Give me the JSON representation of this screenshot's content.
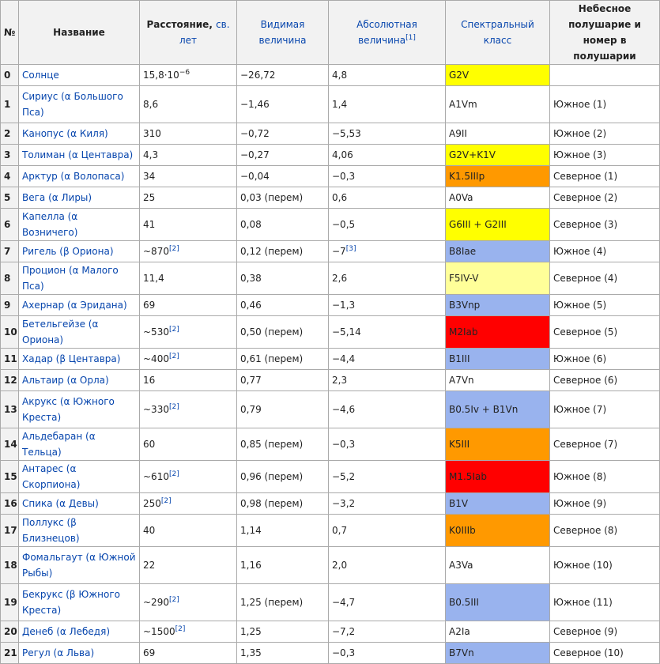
{
  "headers": {
    "num": "№",
    "name": "Название",
    "dist_prefix": "Расстояние,",
    "dist_link": "св. лет",
    "apparent": "Видимая величина",
    "absolute": "Абсолютная величина",
    "absolute_ref": "[1]",
    "spectral": "Спектральный класс",
    "hemisphere": "Небесное полушарие и номер в полушарии"
  },
  "rows": [
    {
      "num": "0",
      "name": "Солнце",
      "dist": "15,8·10",
      "dist_exp": "−6",
      "dist_ref": "",
      "app": "−26,72",
      "abs": "4,8",
      "abs_ref": "",
      "spec": "G2V",
      "color": "#ffff00",
      "hemi": ""
    },
    {
      "num": "1",
      "name": "Сириус (α Большого Пса)",
      "dist": "8,6",
      "dist_exp": "",
      "dist_ref": "",
      "app": "−1,46",
      "abs": "1,4",
      "abs_ref": "",
      "spec": "A1Vm",
      "color": "#ffffff",
      "hemi": "Южное (1)"
    },
    {
      "num": "2",
      "name": "Канопус (α Киля)",
      "dist": "310",
      "dist_exp": "",
      "dist_ref": "",
      "app": "−0,72",
      "abs": "−5,53",
      "abs_ref": "",
      "spec": "A9II",
      "color": "#ffffff",
      "hemi": "Южное (2)"
    },
    {
      "num": "3",
      "name": "Толиман (α Центавра)",
      "dist": "4,3",
      "dist_exp": "",
      "dist_ref": "",
      "app": "−0,27",
      "abs": "4,06",
      "abs_ref": "",
      "spec": "G2V+K1V",
      "color": "#ffff00",
      "hemi": "Южное (3)"
    },
    {
      "num": "4",
      "name": "Арктур (α Волопаса)",
      "dist": "34",
      "dist_exp": "",
      "dist_ref": "",
      "app": "−0,04",
      "abs": "−0,3",
      "abs_ref": "",
      "spec": "K1.5IIIp",
      "color": "#ff9900",
      "hemi": "Северное (1)"
    },
    {
      "num": "5",
      "name": "Вега (α Лиры)",
      "dist": "25",
      "dist_exp": "",
      "dist_ref": "",
      "app": "0,03 (перем)",
      "abs": "0,6",
      "abs_ref": "",
      "spec": "A0Va",
      "color": "#ffffff",
      "hemi": "Северное (2)"
    },
    {
      "num": "6",
      "name": "Капелла (α Возничего)",
      "dist": "41",
      "dist_exp": "",
      "dist_ref": "",
      "app": "0,08",
      "abs": "−0,5",
      "abs_ref": "",
      "spec": "G6III + G2III",
      "color": "#ffff00",
      "hemi": "Северное (3)"
    },
    {
      "num": "7",
      "name": "Ригель (β Ориона)",
      "dist": "~870",
      "dist_exp": "",
      "dist_ref": "[2]",
      "app": "0,12 (перем)",
      "abs": "−7",
      "abs_ref": "[3]",
      "spec": "B8Iae",
      "color": "#99b3ee",
      "hemi": "Южное (4)"
    },
    {
      "num": "8",
      "name": "Процион (α Малого Пса)",
      "dist": "11,4",
      "dist_exp": "",
      "dist_ref": "",
      "app": "0,38",
      "abs": "2,6",
      "abs_ref": "",
      "spec": "F5IV-V",
      "color": "#ffff99",
      "hemi": "Северное (4)"
    },
    {
      "num": "9",
      "name": "Ахернар (α Эридана)",
      "dist": "69",
      "dist_exp": "",
      "dist_ref": "",
      "app": "0,46",
      "abs": "−1,3",
      "abs_ref": "",
      "spec": "B3Vnp",
      "color": "#99b3ee",
      "hemi": "Южное (5)"
    },
    {
      "num": "10",
      "name": "Бетельгейзе (α Ориона)",
      "dist": "~530",
      "dist_exp": "",
      "dist_ref": "[2]",
      "app": "0,50 (перем)",
      "abs": "−5,14",
      "abs_ref": "",
      "spec": "M2Iab",
      "color": "#ff0000",
      "hemi": "Северное (5)"
    },
    {
      "num": "11",
      "name": "Хадар (β Центавра)",
      "dist": "~400",
      "dist_exp": "",
      "dist_ref": "[2]",
      "app": "0,61 (перем)",
      "abs": "−4,4",
      "abs_ref": "",
      "spec": "B1III",
      "color": "#99b3ee",
      "hemi": "Южное (6)"
    },
    {
      "num": "12",
      "name": "Альтаир (α Орла)",
      "dist": "16",
      "dist_exp": "",
      "dist_ref": "",
      "app": "0,77",
      "abs": "2,3",
      "abs_ref": "",
      "spec": "A7Vn",
      "color": "#ffffff",
      "hemi": "Северное (6)"
    },
    {
      "num": "13",
      "name": "Акрукс (α Южного Креста)",
      "dist": "~330",
      "dist_exp": "",
      "dist_ref": "[2]",
      "app": "0,79",
      "abs": "−4,6",
      "abs_ref": "",
      "spec": "B0.5Iv + B1Vn",
      "color": "#99b3ee",
      "hemi": "Южное (7)"
    },
    {
      "num": "14",
      "name": "Альдебаран (α Тельца)",
      "dist": "60",
      "dist_exp": "",
      "dist_ref": "",
      "app": "0,85 (перем)",
      "abs": "−0,3",
      "abs_ref": "",
      "spec": "K5III",
      "color": "#ff9900",
      "hemi": "Северное (7)"
    },
    {
      "num": "15",
      "name": "Антарес (α Скорпиона)",
      "dist": "~610",
      "dist_exp": "",
      "dist_ref": "[2]",
      "app": "0,96 (перем)",
      "abs": "−5,2",
      "abs_ref": "",
      "spec": "M1.5Iab",
      "color": "#ff0000",
      "hemi": "Южное (8)"
    },
    {
      "num": "16",
      "name": "Спика (α Девы)",
      "dist": "250",
      "dist_exp": "",
      "dist_ref": "[2]",
      "app": "0,98 (перем)",
      "abs": "−3,2",
      "abs_ref": "",
      "spec": "B1V",
      "color": "#99b3ee",
      "hemi": "Южное (9)"
    },
    {
      "num": "17",
      "name": "Поллукс (β Близнецов)",
      "dist": "40",
      "dist_exp": "",
      "dist_ref": "",
      "app": "1,14",
      "abs": "0,7",
      "abs_ref": "",
      "spec": "K0IIIb",
      "color": "#ff9900",
      "hemi": "Северное (8)"
    },
    {
      "num": "18",
      "name": "Фомальгаут (α Южной Рыбы)",
      "dist": "22",
      "dist_exp": "",
      "dist_ref": "",
      "app": "1,16",
      "abs": "2,0",
      "abs_ref": "",
      "spec": "A3Va",
      "color": "#ffffff",
      "hemi": "Южное (10)"
    },
    {
      "num": "19",
      "name": "Бекрукс (β Южного Креста)",
      "dist": "~290",
      "dist_exp": "",
      "dist_ref": "[2]",
      "app": "1,25 (перем)",
      "abs": "−4,7",
      "abs_ref": "",
      "spec": "B0.5III",
      "color": "#99b3ee",
      "hemi": "Южное (11)"
    },
    {
      "num": "20",
      "name": "Денеб (α Лебедя)",
      "dist": "~1500",
      "dist_exp": "",
      "dist_ref": "[2]",
      "app": "1,25",
      "abs": "−7,2",
      "abs_ref": "",
      "spec": "A2Ia",
      "color": "#ffffff",
      "hemi": "Северное (9)"
    },
    {
      "num": "21",
      "name": "Регул (α Льва)",
      "dist": "69",
      "dist_exp": "",
      "dist_ref": "",
      "app": "1,35",
      "abs": "−0,3",
      "abs_ref": "",
      "spec": "B7Vn",
      "color": "#99b3ee",
      "hemi": "Северное (10)"
    }
  ]
}
